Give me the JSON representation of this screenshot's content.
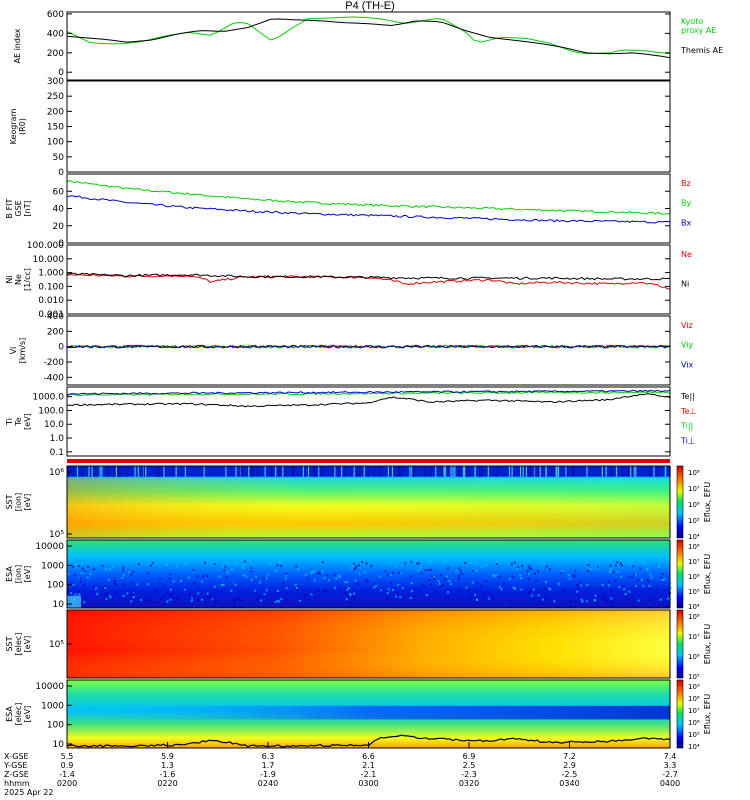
{
  "title": "P4  (TH-E)",
  "colors": {
    "green": "#00d000",
    "black": "#000000",
    "red": "#e00000",
    "blue": "#0000c8",
    "frame": "#000000"
  },
  "chart_data": [
    {
      "id": "ae",
      "type": "line",
      "ylabel": [
        "AE index"
      ],
      "ylim": [
        -80,
        620
      ],
      "yticks": [
        0,
        200,
        400,
        600
      ],
      "series": [
        {
          "name": "Kyoto proxy AE",
          "label_lines": [
            "Kyoto",
            "proxy AE"
          ],
          "color": "green",
          "x": [
            0,
            0.04,
            0.08,
            0.12,
            0.16,
            0.2,
            0.24,
            0.28,
            0.3,
            0.34,
            0.38,
            0.4,
            0.44,
            0.48,
            0.52,
            0.56,
            0.58,
            0.62,
            0.66,
            0.68,
            0.72,
            0.76,
            0.8,
            0.84,
            0.86,
            0.9,
            0.92,
            0.96,
            1.0
          ],
          "y": [
            420,
            300,
            290,
            310,
            370,
            410,
            380,
            520,
            500,
            320,
            480,
            550,
            560,
            570,
            550,
            500,
            520,
            560,
            420,
            300,
            360,
            350,
            300,
            210,
            190,
            200,
            230,
            220,
            190
          ]
        },
        {
          "name": "Themis AE",
          "label_lines": [
            "Themis AE"
          ],
          "color": "black",
          "x": [
            0,
            0.06,
            0.1,
            0.14,
            0.18,
            0.22,
            0.26,
            0.3,
            0.34,
            0.38,
            0.42,
            0.46,
            0.5,
            0.54,
            0.58,
            0.62,
            0.66,
            0.7,
            0.74,
            0.78,
            0.82,
            0.86,
            0.9,
            0.94,
            0.98,
            1.0
          ],
          "y": [
            370,
            340,
            310,
            330,
            390,
            430,
            420,
            460,
            550,
            540,
            530,
            510,
            500,
            480,
            530,
            520,
            430,
            360,
            330,
            300,
            260,
            200,
            190,
            200,
            170,
            150
          ]
        }
      ]
    },
    {
      "id": "keogram",
      "type": "heatmap",
      "ylabel": [
        "Keogram",
        "(R0)"
      ],
      "ylim": [
        0,
        300
      ],
      "yticks": [
        0,
        50,
        100,
        150,
        200,
        250,
        300
      ],
      "series": []
    },
    {
      "id": "bfield",
      "type": "line",
      "ylabel": [
        "B FIT",
        "GSE",
        "[nT]"
      ],
      "ylim": [
        0,
        80
      ],
      "yticks": [
        0,
        20,
        40,
        60
      ],
      "series": [
        {
          "name": "Bz",
          "label_lines": [
            "Bz"
          ],
          "color": "red",
          "x": [],
          "y": []
        },
        {
          "name": "By",
          "label_lines": [
            "By"
          ],
          "color": "green",
          "x": [
            0,
            0.1,
            0.2,
            0.3,
            0.4,
            0.5,
            0.6,
            0.7,
            0.8,
            0.9,
            1.0
          ],
          "y": [
            72,
            63,
            57,
            51,
            47,
            44,
            42,
            40,
            38,
            36,
            34
          ]
        },
        {
          "name": "Bx",
          "label_lines": [
            "Bx"
          ],
          "color": "blue",
          "x": [
            0,
            0.1,
            0.2,
            0.3,
            0.4,
            0.5,
            0.6,
            0.7,
            0.8,
            0.9,
            1.0
          ],
          "y": [
            55,
            47,
            41,
            37,
            34,
            32,
            30,
            28,
            26,
            25,
            24
          ]
        }
      ]
    },
    {
      "id": "density",
      "type": "line",
      "log": true,
      "ylabel": [
        "Ni",
        "Ne",
        "[1/cc]"
      ],
      "ylim": [
        0.001,
        100
      ],
      "yticks": [
        0.001,
        0.01,
        0.1,
        1,
        10,
        100
      ],
      "ytick_labels": [
        "0.001",
        "0.010",
        "0.100",
        "1.000",
        "10.000",
        "100.000"
      ],
      "series": [
        {
          "name": "Ne",
          "label_lines": [
            "Ne"
          ],
          "color": "red",
          "x": [
            0,
            0.1,
            0.2,
            0.24,
            0.3,
            0.4,
            0.5,
            0.56,
            0.6,
            0.7,
            0.74,
            0.8,
            0.9,
            0.95,
            1.0
          ],
          "y": [
            0.7,
            0.55,
            0.6,
            0.2,
            0.5,
            0.5,
            0.45,
            0.15,
            0.2,
            0.3,
            0.15,
            0.2,
            0.15,
            0.2,
            0.06
          ]
        },
        {
          "name": "Ni",
          "label_lines": [
            "Ni"
          ],
          "color": "black",
          "x": [
            0,
            0.1,
            0.2,
            0.3,
            0.4,
            0.5,
            0.6,
            0.7,
            0.8,
            0.9,
            1.0
          ],
          "y": [
            0.8,
            0.6,
            0.7,
            0.5,
            0.5,
            0.45,
            0.4,
            0.4,
            0.4,
            0.35,
            0.35
          ]
        }
      ]
    },
    {
      "id": "velocity",
      "type": "line",
      "ylabel": [
        "Vi",
        "[km/s]"
      ],
      "ylim": [
        -500,
        400
      ],
      "yticks": [
        -400,
        -200,
        0,
        200,
        400
      ],
      "series": [
        {
          "name": "Viz",
          "label_lines": [
            "Viz"
          ],
          "color": "red",
          "x": [
            0,
            0.25,
            0.5,
            0.75,
            1.0
          ],
          "y": [
            0,
            0,
            0,
            0,
            0
          ]
        },
        {
          "name": "Viy",
          "label_lines": [
            "Viy"
          ],
          "color": "green",
          "x": [
            0,
            0.25,
            0.5,
            0.75,
            1.0
          ],
          "y": [
            0,
            0,
            0,
            0,
            0
          ]
        },
        {
          "name": "Vix",
          "label_lines": [
            "Vix"
          ],
          "color": "blue",
          "x": [
            0,
            0.25,
            0.5,
            0.75,
            1.0
          ],
          "y": [
            0,
            0,
            0,
            0,
            0
          ]
        }
      ]
    },
    {
      "id": "temperature",
      "type": "line",
      "log": true,
      "ylabel": [
        "Ti",
        "Te",
        "[eV]"
      ],
      "ylim": [
        0.05,
        5000
      ],
      "yticks": [
        0.1,
        1,
        10,
        100,
        1000
      ],
      "ytick_labels": [
        "0.1",
        "1.0",
        "10.0",
        "100.0",
        "1000.0"
      ],
      "series": [
        {
          "name": "Te||",
          "label_lines": [
            "Te||"
          ],
          "color": "black",
          "x": [
            0,
            0.1,
            0.2,
            0.3,
            0.4,
            0.5,
            0.54,
            0.6,
            0.7,
            0.8,
            0.9,
            0.96,
            1.0
          ],
          "y": [
            250,
            280,
            300,
            200,
            250,
            350,
            900,
            400,
            550,
            400,
            600,
            1500,
            900
          ]
        },
        {
          "name": "Te⊥",
          "label_lines": [
            "Te⊥"
          ],
          "color": "red",
          "x": [],
          "y": []
        },
        {
          "name": "Ti||",
          "label_lines": [
            "Ti||"
          ],
          "color": "green",
          "x": [
            0,
            0.1,
            0.2,
            0.3,
            0.4,
            0.5,
            0.6,
            0.7,
            0.8,
            0.9,
            1.0
          ],
          "y": [
            1300,
            1400,
            1500,
            1500,
            1600,
            1700,
            1800,
            1900,
            2000,
            2000,
            2100
          ]
        },
        {
          "name": "Ti⊥",
          "label_lines": [
            "Ti⊥"
          ],
          "color": "blue",
          "x": [
            0,
            0.1,
            0.2,
            0.3,
            0.4,
            0.5,
            0.6,
            0.7,
            0.8,
            0.9,
            1.0
          ],
          "y": [
            1600,
            1700,
            1800,
            1900,
            2000,
            2100,
            2200,
            2300,
            2400,
            2500,
            2600
          ]
        }
      ]
    },
    {
      "id": "sst_ion",
      "type": "heatmap",
      "ylabel": [
        "SST",
        "[ion]",
        "[eV]"
      ],
      "ytick_labels": [
        "10⁶",
        "10⁵"
      ],
      "colorbar": {
        "label": "Eflux, EFU",
        "ticks": [
          "10⁸",
          "10⁷",
          "10⁶",
          "10⁵",
          "10⁴"
        ]
      }
    },
    {
      "id": "esa_ion",
      "type": "heatmap",
      "ylabel": [
        "ESA",
        "[ion]",
        "[eV]"
      ],
      "ytick_labels": [
        "10000",
        "1000",
        "100",
        "10"
      ],
      "colorbar": {
        "label": "Eflux, EFU",
        "ticks": [
          "10⁸",
          "10⁷",
          "10⁶",
          "10⁵",
          "10⁴"
        ]
      }
    },
    {
      "id": "sst_elec",
      "type": "heatmap",
      "ylabel": [
        "SST",
        "[elec]",
        "[eV]"
      ],
      "ytick_labels": [
        "10⁵"
      ],
      "colorbar": {
        "label": "Eflux, EFU",
        "ticks": [
          "10⁸",
          "10⁷",
          "10⁶",
          "10⁵"
        ]
      }
    },
    {
      "id": "esa_elec",
      "type": "heatmap",
      "ylabel": [
        "ESA",
        "[elec]",
        "[eV]"
      ],
      "ytick_labels": [
        "10000",
        "1000",
        "100",
        "10"
      ],
      "colorbar": {
        "label": "Eflux, EFU",
        "ticks": [
          "10⁹",
          "10⁸",
          "10⁷",
          "10⁶",
          "10⁵",
          "10⁴"
        ]
      }
    }
  ],
  "xaxis": {
    "row_labels": [
      "X-GSE",
      "Y-GSE",
      "Z-GSE",
      "hhmm",
      "2025 Apr 22"
    ],
    "ticks": [
      {
        "x": 0.0,
        "xgse": "5.5",
        "ygse": "0.9",
        "zgse": "-1.4",
        "time": "0200"
      },
      {
        "x": 0.1667,
        "xgse": "5.9",
        "ygse": "1.3",
        "zgse": "-1.6",
        "time": "0220"
      },
      {
        "x": 0.3333,
        "xgse": "6.3",
        "ygse": "1.7",
        "zgse": "-1.9",
        "time": "0240"
      },
      {
        "x": 0.5,
        "xgse": "6.6",
        "ygse": "2.1",
        "zgse": "-2.1",
        "time": "0300"
      },
      {
        "x": 0.6667,
        "xgse": "6.9",
        "ygse": "2.5",
        "zgse": "-2.3",
        "time": "0320"
      },
      {
        "x": 0.8333,
        "xgse": "7.2",
        "ygse": "2.9",
        "zgse": "-2.5",
        "time": "0340"
      },
      {
        "x": 1.0,
        "xgse": "7.4",
        "ygse": "3.3",
        "zgse": "-2.7",
        "time": "0400"
      }
    ]
  }
}
